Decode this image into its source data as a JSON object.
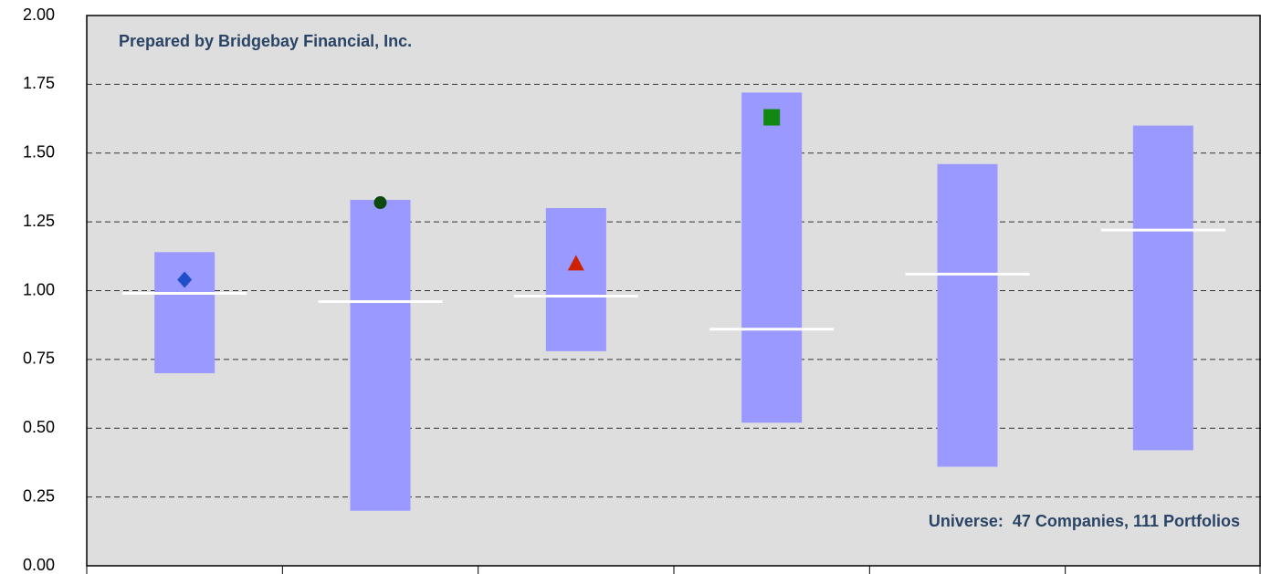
{
  "chart_data": {
    "type": "floating-bar",
    "categories": [
      null,
      null,
      null,
      null,
      null,
      null
    ],
    "ranges": {
      "low": [
        0.7,
        0.2,
        0.78,
        0.52,
        0.36,
        0.42
      ],
      "high": [
        1.14,
        1.33,
        1.3,
        1.72,
        1.46,
        1.6
      ],
      "color": "#9999ff"
    },
    "medians": {
      "values": [
        0.99,
        0.96,
        0.98,
        0.86,
        1.06,
        1.22
      ],
      "color": "#ffffff"
    },
    "markers": {
      "values": [
        1.04,
        1.32,
        1.1,
        1.63,
        null,
        null
      ],
      "shapes": [
        "diamond",
        "circle",
        "triangle",
        "square",
        null,
        null
      ],
      "colors": [
        "#1f4fc8",
        "#0b4a0b",
        "#cc2200",
        "#118811",
        null,
        null
      ]
    },
    "ylim": [
      0,
      2
    ],
    "yticks": [
      {
        "value": 0,
        "label": "0.00"
      },
      {
        "value": 0.25,
        "label": "0.25"
      },
      {
        "value": 0.5,
        "label": "0.50"
      },
      {
        "value": 0.75,
        "label": "0.75"
      },
      {
        "value": 1,
        "label": "1.00"
      },
      {
        "value": 1.25,
        "label": "1.25"
      },
      {
        "value": 1.5,
        "label": "1.50"
      },
      {
        "value": 1.75,
        "label": "1.75"
      },
      {
        "value": 2,
        "label": "2.00"
      }
    ],
    "grid": true,
    "annotations": [
      "Prepared by Bridgebay Financial, Inc.",
      "Universe:  47 Companies, 111 Portfolios"
    ]
  }
}
